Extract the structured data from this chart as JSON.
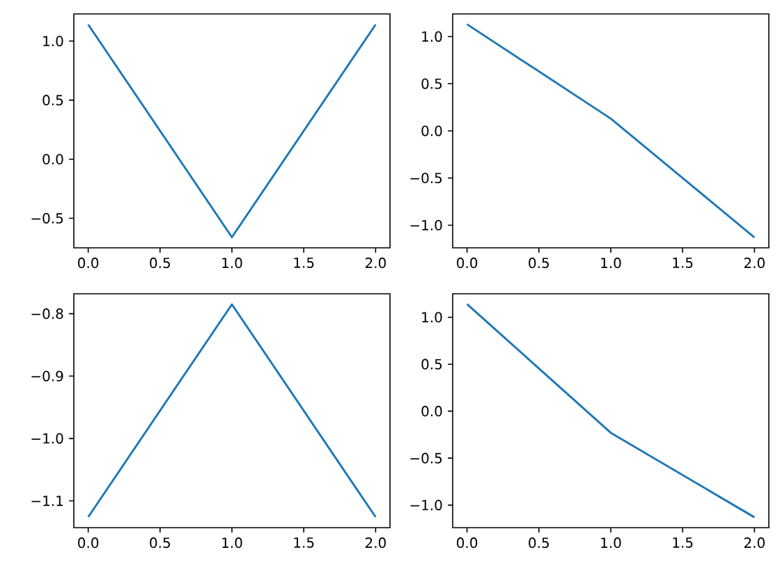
{
  "chart_data": [
    {
      "type": "line",
      "x": [
        0,
        1,
        2
      ],
      "values": [
        1.14,
        -0.66,
        1.14
      ],
      "color": "#1f77b4",
      "xlim": [
        -0.1,
        2.1
      ],
      "ylim": [
        -0.75,
        1.23
      ],
      "xticks": [
        {
          "value": 0,
          "label": "0.0"
        },
        {
          "value": 0.5,
          "label": "0.5"
        },
        {
          "value": 1,
          "label": "1.0"
        },
        {
          "value": 1.5,
          "label": "1.5"
        },
        {
          "value": 2,
          "label": "2.0"
        }
      ],
      "yticks": [
        {
          "value": -0.5,
          "label": "−0.5"
        },
        {
          "value": 0,
          "label": "0.0"
        },
        {
          "value": 0.5,
          "label": "0.5"
        },
        {
          "value": 1,
          "label": "1.0"
        }
      ],
      "grid": false,
      "marker": "none",
      "line_style": "solid"
    },
    {
      "type": "line",
      "x": [
        0,
        1,
        2
      ],
      "values": [
        1.13,
        0.13,
        -1.13
      ],
      "color": "#1f77b4",
      "xlim": [
        -0.1,
        2.1
      ],
      "ylim": [
        -1.24,
        1.24
      ],
      "xticks": [
        {
          "value": 0,
          "label": "0.0"
        },
        {
          "value": 0.5,
          "label": "0.5"
        },
        {
          "value": 1,
          "label": "1.0"
        },
        {
          "value": 1.5,
          "label": "1.5"
        },
        {
          "value": 2,
          "label": "2.0"
        }
      ],
      "yticks": [
        {
          "value": -1,
          "label": "−1.0"
        },
        {
          "value": -0.5,
          "label": "−0.5"
        },
        {
          "value": 0,
          "label": "0.0"
        },
        {
          "value": 0.5,
          "label": "0.5"
        },
        {
          "value": 1,
          "label": "1.0"
        }
      ],
      "grid": false,
      "marker": "none",
      "line_style": "solid"
    },
    {
      "type": "line",
      "x": [
        0,
        1,
        2
      ],
      "values": [
        -1.126,
        -0.785,
        -1.126
      ],
      "color": "#1f77b4",
      "xlim": [
        -0.1,
        2.1
      ],
      "ylim": [
        -1.143,
        -0.768
      ],
      "xticks": [
        {
          "value": 0,
          "label": "0.0"
        },
        {
          "value": 0.5,
          "label": "0.5"
        },
        {
          "value": 1,
          "label": "1.0"
        },
        {
          "value": 1.5,
          "label": "1.5"
        },
        {
          "value": 2,
          "label": "2.0"
        }
      ],
      "yticks": [
        {
          "value": -1.1,
          "label": "−1.1"
        },
        {
          "value": -1.0,
          "label": "−1.0"
        },
        {
          "value": -0.9,
          "label": "−0.9"
        },
        {
          "value": -0.8,
          "label": "−0.8"
        }
      ],
      "grid": false,
      "marker": "none",
      "line_style": "solid"
    },
    {
      "type": "line",
      "x": [
        0,
        1,
        2
      ],
      "values": [
        1.14,
        -0.23,
        -1.13
      ],
      "color": "#1f77b4",
      "xlim": [
        -0.1,
        2.1
      ],
      "ylim": [
        -1.24,
        1.25
      ],
      "xticks": [
        {
          "value": 0,
          "label": "0.0"
        },
        {
          "value": 0.5,
          "label": "0.5"
        },
        {
          "value": 1,
          "label": "1.0"
        },
        {
          "value": 1.5,
          "label": "1.5"
        },
        {
          "value": 2,
          "label": "2.0"
        }
      ],
      "yticks": [
        {
          "value": -1,
          "label": "−1.0"
        },
        {
          "value": -0.5,
          "label": "−0.5"
        },
        {
          "value": 0,
          "label": "0.0"
        },
        {
          "value": 0.5,
          "label": "0.5"
        },
        {
          "value": 1,
          "label": "1.0"
        }
      ],
      "grid": false,
      "marker": "none",
      "line_style": "solid"
    }
  ]
}
